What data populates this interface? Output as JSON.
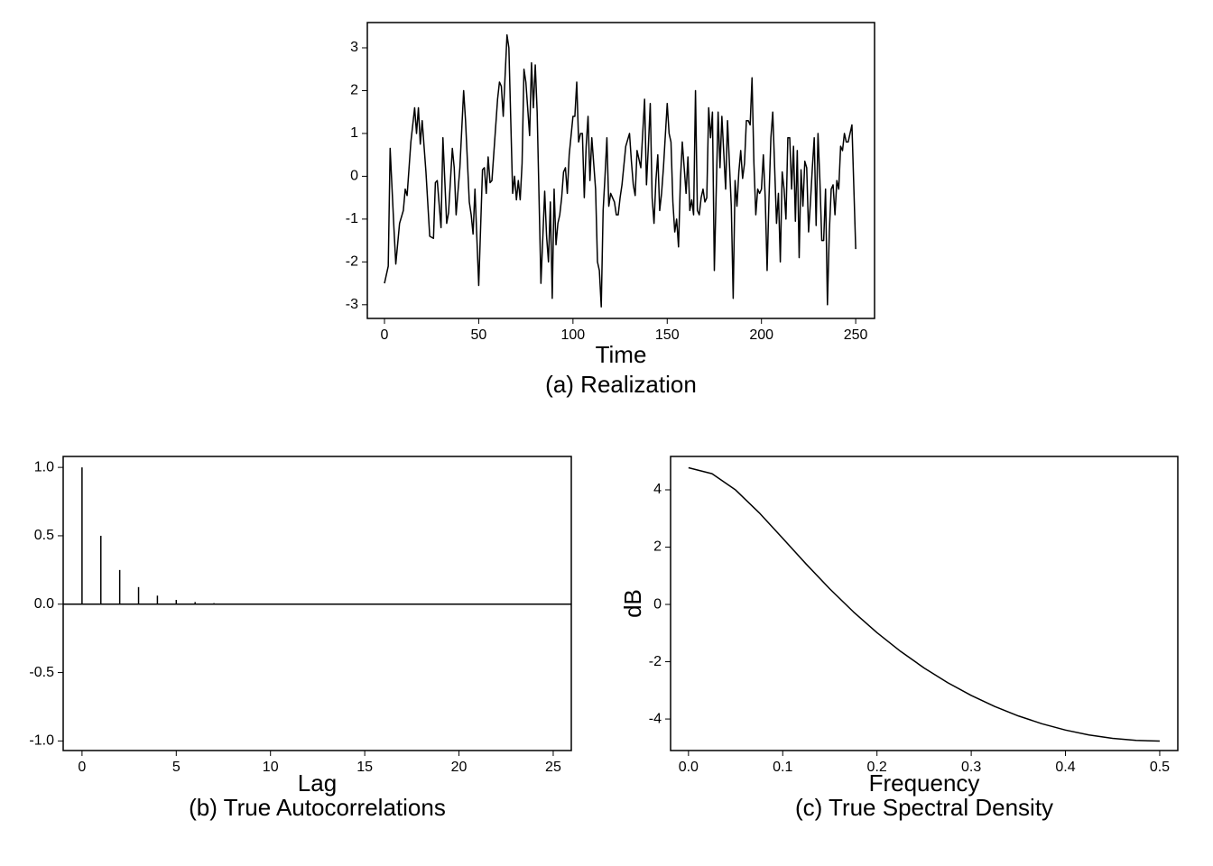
{
  "chart_data": [
    {
      "type": "line",
      "caption": "(a) Realization",
      "xlabel": "Time",
      "color": "#000000",
      "x": [
        0,
        2,
        3,
        5,
        6,
        8,
        10,
        11,
        12,
        14,
        16,
        17,
        18,
        19,
        20,
        22,
        24,
        26,
        27,
        28,
        30,
        31,
        33,
        34,
        36,
        37,
        38,
        40,
        42,
        43,
        45,
        46,
        47,
        48,
        50,
        52,
        53,
        54,
        55,
        56,
        57,
        60,
        61,
        62,
        63,
        65,
        66,
        68,
        69,
        70,
        71,
        72,
        73,
        74,
        75,
        77,
        78,
        79,
        80,
        81,
        83,
        85,
        86,
        87,
        88,
        89,
        90,
        91,
        92,
        93,
        94,
        95,
        96,
        97,
        98,
        100,
        101,
        102,
        103,
        104,
        105,
        106,
        107,
        108,
        109,
        110,
        112,
        113,
        114,
        115,
        116,
        117,
        118,
        119,
        120,
        122,
        123,
        124,
        125,
        126,
        128,
        130,
        131,
        132,
        133,
        134,
        136,
        138,
        139,
        140,
        141,
        142,
        143,
        144,
        145,
        146,
        147,
        148,
        150,
        151,
        152,
        153,
        154,
        155,
        156,
        157,
        158,
        160,
        161,
        162,
        163,
        164,
        165,
        166,
        167,
        168,
        169,
        170,
        171,
        172,
        173,
        174,
        175,
        177,
        178,
        179,
        181,
        182,
        184,
        185,
        186,
        187,
        188,
        189,
        190,
        191,
        192,
        193,
        194,
        195,
        196,
        197,
        198,
        199,
        200,
        201,
        202,
        203,
        204,
        205,
        206,
        207,
        208,
        209,
        210,
        211,
        212,
        213,
        214,
        215,
        216,
        217,
        218,
        219,
        220,
        221,
        222,
        223,
        224,
        225,
        226,
        227,
        228,
        229,
        230,
        231,
        232,
        233,
        234,
        235,
        236,
        237,
        238,
        239,
        240,
        241,
        242,
        243,
        244,
        245,
        246,
        248,
        250
      ],
      "values": [
        -2.5,
        -2.1,
        0.65,
        -1.2,
        -2.05,
        -1.1,
        -0.8,
        -0.3,
        -0.45,
        0.8,
        1.6,
        1.0,
        1.6,
        0.75,
        1.3,
        0.1,
        -1.4,
        -1.45,
        -0.15,
        -0.1,
        -1.2,
        0.9,
        -1.1,
        -0.85,
        0.65,
        0.2,
        -0.9,
        0.2,
        2.0,
        1.3,
        -0.6,
        -0.9,
        -1.35,
        -0.3,
        -2.55,
        0.15,
        0.2,
        -0.4,
        0.45,
        -0.15,
        -0.1,
        1.8,
        2.2,
        2.1,
        1.4,
        3.3,
        3.0,
        -0.4,
        0.0,
        -0.55,
        -0.1,
        -0.55,
        0.3,
        2.5,
        2.2,
        0.95,
        2.65,
        1.6,
        2.6,
        1.5,
        -2.5,
        -0.35,
        -1.4,
        -2.0,
        -0.6,
        -2.85,
        -0.3,
        -1.6,
        -1.1,
        -0.9,
        -0.5,
        0.1,
        0.2,
        -0.4,
        0.5,
        1.4,
        1.4,
        2.2,
        0.8,
        1.0,
        1.0,
        -0.5,
        0.7,
        1.4,
        -0.1,
        0.9,
        -0.3,
        -2.0,
        -2.2,
        -3.05,
        -0.8,
        0.0,
        0.9,
        -0.7,
        -0.4,
        -0.6,
        -0.9,
        -0.9,
        -0.5,
        -0.2,
        0.7,
        1.0,
        0.35,
        -0.2,
        -0.45,
        0.6,
        0.2,
        1.8,
        -0.2,
        0.7,
        1.7,
        -0.5,
        -1.1,
        -0.1,
        0.5,
        -0.8,
        -0.4,
        0.2,
        1.7,
        1.0,
        0.8,
        -0.6,
        -1.3,
        -1.0,
        -1.65,
        -0.1,
        0.8,
        -0.4,
        0.45,
        -0.8,
        -0.55,
        -0.9,
        2.0,
        -0.8,
        -0.9,
        -0.5,
        -0.3,
        -0.6,
        -0.5,
        1.6,
        0.9,
        1.5,
        -2.2,
        1.5,
        0.2,
        1.4,
        -0.3,
        1.3,
        -0.7,
        -2.85,
        -0.1,
        -0.7,
        0.1,
        0.6,
        -0.05,
        0.3,
        1.3,
        1.3,
        1.2,
        2.3,
        0.3,
        -0.9,
        -0.3,
        -0.4,
        -0.3,
        0.5,
        -0.5,
        -2.2,
        -0.5,
        0.9,
        1.5,
        0.2,
        -1.1,
        -0.4,
        -2.0,
        0.1,
        -0.3,
        -1.0,
        0.9,
        0.9,
        -0.3,
        0.7,
        -1.05,
        0.6,
        -1.9,
        0.15,
        -0.7,
        0.35,
        0.2,
        -1.3,
        -0.6,
        0.2,
        0.9,
        -1.15,
        1.0,
        -0.1,
        -1.5,
        -1.5,
        -0.3,
        -3.0,
        -1.3,
        -0.3,
        -0.2,
        -0.9,
        -0.1,
        -0.3,
        0.7,
        0.6,
        1.0,
        0.8,
        0.8,
        1.2,
        -1.7
      ],
      "xlim": [
        -9.1,
        260
      ],
      "xticks": [
        0,
        50,
        100,
        150,
        200,
        250
      ],
      "ylim": [
        -3.32,
        3.59
      ],
      "yticks": [
        -3,
        -2,
        -1,
        0,
        1,
        2,
        3
      ]
    },
    {
      "type": "bar",
      "caption": "(b) True Autocorrelations",
      "xlabel": "Lag",
      "color": "#000000",
      "x": [
        0,
        1,
        2,
        3,
        4,
        5,
        6,
        7,
        8,
        9,
        10,
        11,
        12,
        13,
        14,
        15,
        16,
        17,
        18,
        19,
        20,
        21,
        22,
        23,
        24,
        25
      ],
      "values": [
        1,
        0.5,
        0.25,
        0.125,
        0.0625,
        0.0313,
        0.0156,
        0.0078,
        0.0039,
        0.002,
        0.001,
        0.0005,
        0.0002,
        0.0001,
        0,
        0,
        0,
        0,
        0,
        0,
        0,
        0,
        0,
        0,
        0,
        0
      ],
      "xlim": [
        -1.0,
        25.96
      ],
      "xticks": [
        0,
        5,
        10,
        15,
        20,
        25
      ],
      "ylim": [
        -1.07,
        1.08
      ],
      "yticks": [
        {
          "value": -1,
          "label": "-1.0"
        },
        {
          "value": -0.5,
          "label": "-0.5"
        },
        {
          "value": 0,
          "label": "0.0"
        },
        {
          "value": 0.5,
          "label": "0.5"
        },
        {
          "value": 1,
          "label": "1.0"
        }
      ]
    },
    {
      "type": "line",
      "caption": "(c) True Spectral Density",
      "xlabel": "Frequency",
      "ylabel": "dB",
      "color": "#000000",
      "x": [
        0,
        0.025,
        0.05,
        0.075,
        0.1,
        0.125,
        0.15,
        0.175,
        0.2,
        0.225,
        0.25,
        0.275,
        0.3,
        0.325,
        0.35,
        0.375,
        0.4,
        0.425,
        0.45,
        0.475,
        0.5
      ],
      "values": [
        4.771,
        4.563,
        3.995,
        3.2,
        2.307,
        1.404,
        0.541,
        -0.259,
        -0.985,
        -1.638,
        -2.218,
        -2.73,
        -3.178,
        -3.564,
        -3.892,
        -4.165,
        -4.386,
        -4.556,
        -4.676,
        -4.747,
        -4.771
      ],
      "xlim": [
        -0.019,
        0.5192
      ],
      "xticks": [
        {
          "value": 0,
          "label": "0.0"
        },
        {
          "value": 0.1,
          "label": "0.1"
        },
        {
          "value": 0.2,
          "label": "0.2"
        },
        {
          "value": 0.3,
          "label": "0.3"
        },
        {
          "value": 0.4,
          "label": "0.4"
        },
        {
          "value": 0.5,
          "label": "0.5"
        }
      ],
      "ylim": [
        -5.1,
        5.165
      ],
      "yticks": [
        -4,
        -2,
        0,
        2,
        4
      ]
    }
  ]
}
